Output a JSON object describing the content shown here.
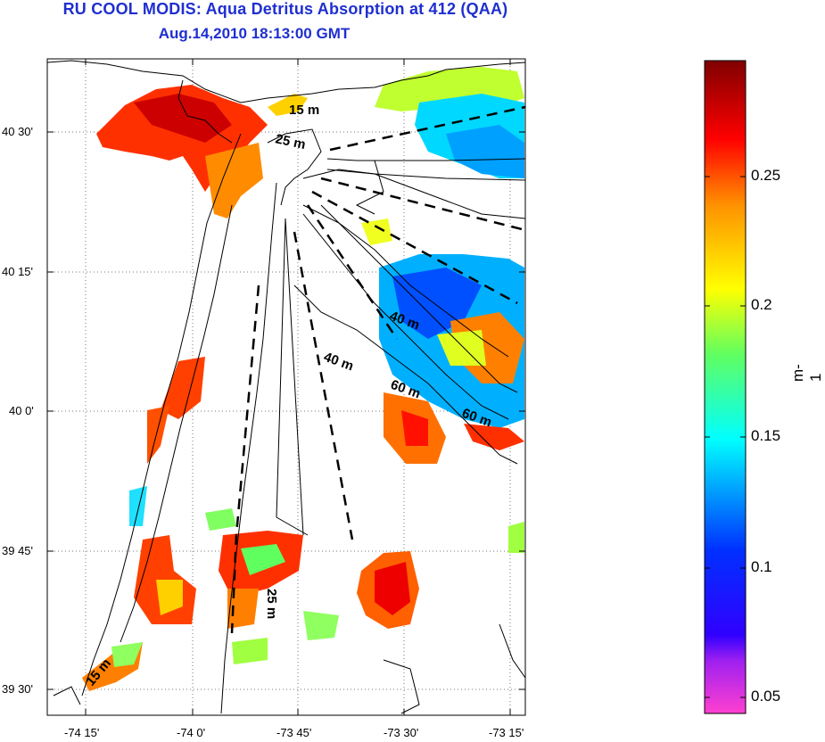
{
  "header": {
    "title": "RU COOL MODIS: Aqua Detritus Absorption at 412 (QAA)",
    "subtitle": "Aug.14,2010 18:13:00 GMT"
  },
  "map": {
    "lat_ticks": [
      "40 30'",
      "40 15'",
      "40 0'",
      "39 45'",
      "39 30'"
    ],
    "lon_ticks": [
      "-74 15'",
      "-74 0'",
      "-73 45'",
      "-73 30'",
      "-73 15'"
    ],
    "isobath_labels": [
      "15 m",
      "25 m",
      "40 m",
      "40 m",
      "60 m",
      "60 m",
      "25 m",
      "15 m"
    ]
  },
  "colorbar": {
    "ticks": [
      "0.25",
      "0.2",
      "0.15",
      "0.1",
      "0.05"
    ],
    "unit": "m-1",
    "range": [
      0.04,
      0.29
    ],
    "colors": [
      "#ff40d0",
      "#3000ff",
      "#0040ff",
      "#00e0ff",
      "#80ff60",
      "#ffff00",
      "#ff8000",
      "#ff0000",
      "#800000"
    ]
  }
}
